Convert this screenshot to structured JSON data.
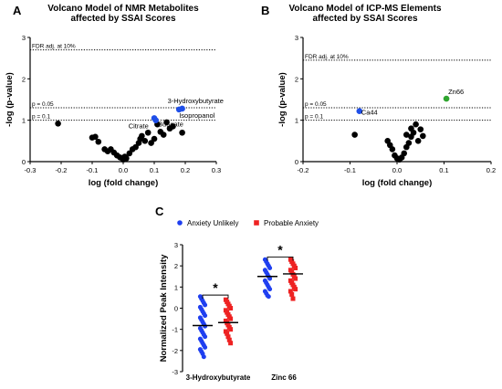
{
  "colors": {
    "black": "#000000",
    "highlight_blue": "#1f4fe8",
    "highlight_green": "#2fa52f",
    "anxiety_unlikely": "#1f3ff0",
    "probable_anxiety": "#ee2222"
  },
  "chart_data": [
    {
      "panel": "A",
      "type": "scatter",
      "title": "Volcano Model of NMR Metabolites\naffected by SSAI Scores",
      "xlabel": "log (fold change)",
      "ylabel": "-log (p-value)",
      "xlim": [
        -0.3,
        0.3
      ],
      "ylim": [
        0,
        3
      ],
      "xticks": [
        "-0.3",
        "-0.2",
        "-0.1",
        "0.0",
        "0.1",
        "0.2",
        "0.3"
      ],
      "yticks": [
        "0",
        "1",
        "2",
        "3"
      ],
      "thresholds": [
        {
          "label": "FDR adj. at 10%",
          "y": 2.7
        },
        {
          "label": "p = 0.05",
          "y": 1.301
        },
        {
          "label": "p = 0.1",
          "y": 1.0
        }
      ],
      "points": [
        {
          "x": -0.21,
          "y": 0.92
        },
        {
          "x": -0.1,
          "y": 0.58
        },
        {
          "x": -0.09,
          "y": 0.6
        },
        {
          "x": -0.08,
          "y": 0.48
        },
        {
          "x": -0.06,
          "y": 0.3
        },
        {
          "x": -0.05,
          "y": 0.25
        },
        {
          "x": -0.04,
          "y": 0.3
        },
        {
          "x": -0.03,
          "y": 0.22
        },
        {
          "x": -0.02,
          "y": 0.15
        },
        {
          "x": -0.01,
          "y": 0.1
        },
        {
          "x": 0.0,
          "y": 0.05
        },
        {
          "x": 0.005,
          "y": 0.12
        },
        {
          "x": 0.01,
          "y": 0.08
        },
        {
          "x": 0.02,
          "y": 0.2
        },
        {
          "x": 0.03,
          "y": 0.3
        },
        {
          "x": 0.04,
          "y": 0.35
        },
        {
          "x": 0.05,
          "y": 0.45
        },
        {
          "x": 0.055,
          "y": 0.55
        },
        {
          "x": 0.06,
          "y": 0.62
        },
        {
          "x": 0.07,
          "y": 0.5
        },
        {
          "x": 0.08,
          "y": 0.7
        },
        {
          "x": 0.09,
          "y": 0.45
        },
        {
          "x": 0.1,
          "y": 0.55
        },
        {
          "x": 0.11,
          "y": 0.9
        },
        {
          "x": 0.12,
          "y": 0.72
        },
        {
          "x": 0.13,
          "y": 0.65
        },
        {
          "x": 0.14,
          "y": 0.95
        },
        {
          "x": 0.15,
          "y": 0.8
        },
        {
          "x": 0.16,
          "y": 0.85
        },
        {
          "x": 0.19,
          "y": 0.7
        }
      ],
      "highlighted": [
        {
          "label": "3-Hydroxybutyrate",
          "x": 0.19,
          "y": 1.28,
          "color": "#1f4fe8"
        },
        {
          "label": "Isopropanol",
          "x": 0.18,
          "y": 1.26,
          "color": "#1f4fe8"
        },
        {
          "label": "Citrate",
          "x": 0.105,
          "y": 1.0,
          "color": "#1f4fe8"
        },
        {
          "label": "Butyrate",
          "x": 0.1,
          "y": 1.05,
          "color": "#1f4fe8"
        }
      ]
    },
    {
      "panel": "B",
      "type": "scatter",
      "title": "Volcano Model of ICP-MS Elements\naffected by SSAI Scores",
      "xlabel": "log (fold change)",
      "ylabel": "-log (p-value)",
      "xlim": [
        -0.2,
        0.2
      ],
      "ylim": [
        0,
        3
      ],
      "xticks": [
        "-0.2",
        "-0.1",
        "0.0",
        "0.1",
        "0.2"
      ],
      "yticks": [
        "0",
        "1",
        "2",
        "3"
      ],
      "thresholds": [
        {
          "label": "FDR adj. at 10%",
          "y": 2.45
        },
        {
          "label": "p = 0.05",
          "y": 1.301
        },
        {
          "label": "p = 0.1",
          "y": 1.0
        }
      ],
      "points": [
        {
          "x": -0.09,
          "y": 0.65
        },
        {
          "x": -0.02,
          "y": 0.5
        },
        {
          "x": -0.015,
          "y": 0.4
        },
        {
          "x": -0.01,
          "y": 0.3
        },
        {
          "x": -0.005,
          "y": 0.15
        },
        {
          "x": 0.0,
          "y": 0.08
        },
        {
          "x": 0.005,
          "y": 0.05
        },
        {
          "x": 0.01,
          "y": 0.1
        },
        {
          "x": 0.015,
          "y": 0.2
        },
        {
          "x": 0.02,
          "y": 0.35
        },
        {
          "x": 0.025,
          "y": 0.45
        },
        {
          "x": 0.03,
          "y": 0.6
        },
        {
          "x": 0.035,
          "y": 0.7
        },
        {
          "x": 0.04,
          "y": 0.9
        },
        {
          "x": 0.045,
          "y": 0.5
        },
        {
          "x": 0.05,
          "y": 0.78
        },
        {
          "x": 0.055,
          "y": 0.62
        },
        {
          "x": 0.02,
          "y": 0.65
        },
        {
          "x": 0.03,
          "y": 0.8
        }
      ],
      "highlighted": [
        {
          "label": "Zn66",
          "x": 0.105,
          "y": 1.52,
          "color": "#2fa52f"
        },
        {
          "label": "Ca44",
          "x": -0.08,
          "y": 1.22,
          "color": "#1f4fe8"
        }
      ]
    },
    {
      "panel": "C",
      "type": "scatter",
      "subtype": "dot-plot",
      "ylabel": "Normalized Peak Intensity",
      "ylim": [
        -3,
        3
      ],
      "yticks": [
        "-3",
        "-2",
        "-1",
        "0",
        "1",
        "2",
        "3"
      ],
      "legend": {
        "position": "top",
        "items": [
          {
            "label": "Anxiety Unlikely",
            "color": "#1f3ff0",
            "marker": "circle"
          },
          {
            "label": "Probable Anxiety",
            "color": "#ee2222",
            "marker": "square"
          }
        ]
      },
      "categories": [
        "3-Hydroxybutyrate",
        "Zinc 66"
      ],
      "significance": [
        "*",
        "*"
      ],
      "groups": [
        {
          "category": "3-Hydroxybutyrate",
          "series": "Anxiety Unlikely",
          "mean": -0.82,
          "values": [
            0.55,
            0.45,
            0.35,
            0.25,
            0.15,
            0.05,
            -0.05,
            -0.15,
            -0.25,
            -0.35,
            -0.45,
            -0.55,
            -0.65,
            -0.75,
            -0.85,
            -0.95,
            -1.05,
            -1.15,
            -1.25,
            -1.35,
            -1.45,
            -1.55,
            -1.65,
            -1.75,
            -1.85,
            -1.95,
            -2.05,
            -2.15,
            -2.3
          ]
        },
        {
          "category": "3-Hydroxybutyrate",
          "series": "Probable Anxiety",
          "mean": -0.68,
          "values": [
            0.4,
            0.3,
            0.2,
            0.1,
            0.0,
            -0.1,
            -0.2,
            -0.3,
            -0.4,
            -0.5,
            -0.6,
            -0.7,
            -0.8,
            -0.9,
            -1.0,
            -1.1,
            -1.2,
            -1.35,
            -1.5,
            -1.65
          ]
        },
        {
          "category": "Zinc 66",
          "series": "Anxiety Unlikely",
          "mean": 1.5,
          "values": [
            2.3,
            2.2,
            2.1,
            2.0,
            1.9,
            1.8,
            1.7,
            1.6,
            1.5,
            1.4,
            1.3,
            1.2,
            1.1,
            1.0,
            0.9,
            0.8,
            0.7,
            0.6,
            0.55
          ]
        },
        {
          "category": "Zinc 66",
          "series": "Probable Anxiety",
          "mean": 1.62,
          "values": [
            2.3,
            2.2,
            2.1,
            2.0,
            1.9,
            1.8,
            1.7,
            1.6,
            1.5,
            1.4,
            1.3,
            1.2,
            1.1,
            1.0,
            0.9,
            0.8,
            0.65,
            0.45
          ]
        }
      ]
    }
  ]
}
